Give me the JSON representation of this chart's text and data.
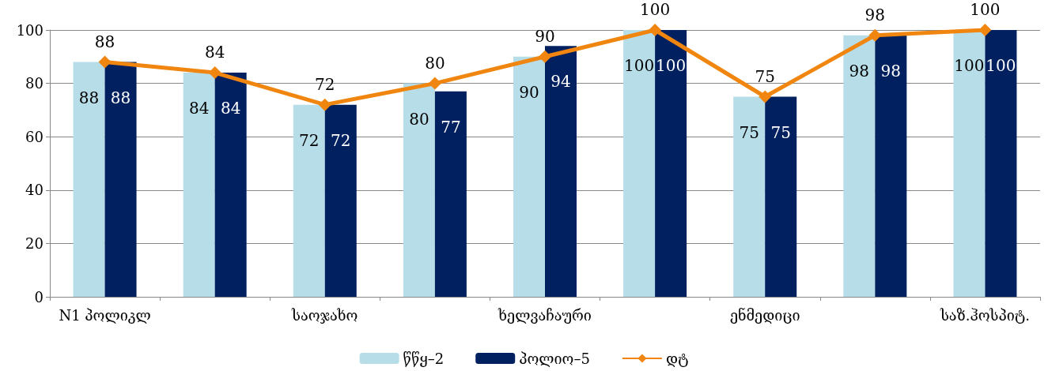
{
  "chart_data": {
    "type": "bar",
    "categories": [
      "N1 პოლიკლ",
      null,
      "საოჯახო",
      null,
      "ხელვაჩაური",
      null,
      "ენმედიცი",
      null,
      "საზ.ჰოსპიტ."
    ],
    "series": [
      {
        "name": "წწყ–2",
        "color": "#b7dde8",
        "values": [
          88,
          84,
          72,
          80,
          90,
          100,
          75,
          98,
          100
        ]
      },
      {
        "name": "პოლიო–5",
        "color": "#002060",
        "values": [
          88,
          84,
          72,
          77,
          94,
          100,
          75,
          98,
          100
        ]
      },
      {
        "name": "დტ",
        "type": "line",
        "color": "#f0860f",
        "values": [
          88,
          84,
          72,
          80,
          90,
          100,
          75,
          98,
          100
        ],
        "marker": "diamond"
      }
    ],
    "ylim": [
      0,
      100
    ],
    "yticks": [
      0,
      20,
      40,
      60,
      80,
      100
    ],
    "grid": "y",
    "legend": "bottom",
    "data_labels": true
  }
}
